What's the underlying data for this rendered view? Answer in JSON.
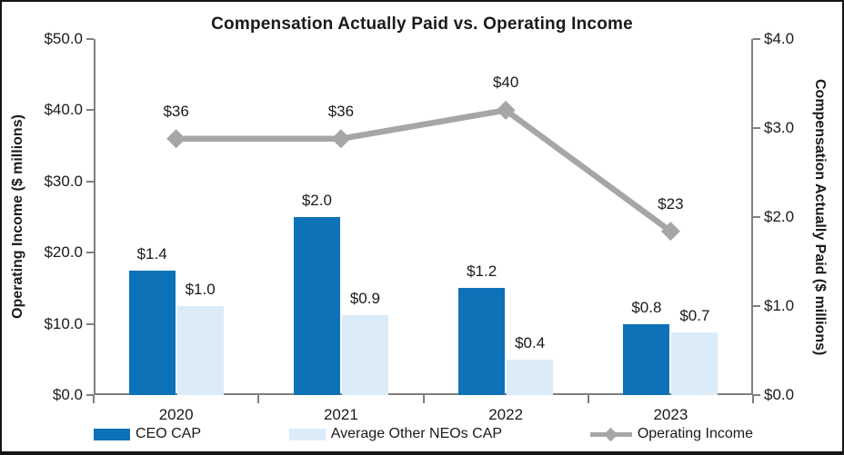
{
  "frame": {
    "border_color": "#151515",
    "background_color": "#ffffff",
    "text_color": "#1a1a1a",
    "axis_color": "#7f7f7f"
  },
  "chart_data": {
    "type": "combo-bar-line",
    "title": "Compensation Actually Paid vs. Operating Income",
    "categories": [
      "2020",
      "2021",
      "2022",
      "2023"
    ],
    "bar_series": [
      {
        "name": "CEO CAP",
        "slug": "ceo-cap",
        "axis": "right",
        "color": "#0e72b8",
        "values": [
          1.4,
          2.0,
          1.2,
          0.8
        ],
        "labels": [
          "$1.4",
          "$2.0",
          "$1.2",
          "$0.8"
        ]
      },
      {
        "name": "Average Other NEOs CAP",
        "slug": "average-other-neos-cap",
        "axis": "right",
        "color": "#dcebf8",
        "values": [
          1.0,
          0.9,
          0.4,
          0.7
        ],
        "labels": [
          "$1.0",
          "$0.9",
          "$0.4",
          "$0.7"
        ]
      }
    ],
    "line_series": [
      {
        "name": "Operating Income",
        "slug": "operating-income",
        "axis": "left",
        "color": "#a6a6a6",
        "marker": "diamond",
        "values": [
          36,
          36,
          40,
          23
        ],
        "labels": [
          "$36",
          "$36",
          "$40",
          "$23"
        ]
      }
    ],
    "left_axis": {
      "title": "Operating Income ($ millions)",
      "min": 0,
      "max": 50,
      "tick_values": [
        0,
        10,
        20,
        30,
        40,
        50
      ],
      "tick_labels": [
        "$0.0",
        "$10.0",
        "$20.0",
        "$30.0",
        "$40.0",
        "$50.0"
      ]
    },
    "right_axis": {
      "title": "Compensation Actually Paid ($ millions)",
      "min": 0,
      "max": 4,
      "tick_values": [
        0,
        1,
        2,
        3,
        4
      ],
      "tick_labels": [
        "$0.0",
        "$1.0",
        "$2.0",
        "$3.0",
        "$4.0"
      ]
    },
    "legend": {
      "position": "bottom",
      "entries": [
        "CEO CAP",
        "Average Other NEOs CAP",
        "Operating Income"
      ]
    },
    "grid": false
  }
}
